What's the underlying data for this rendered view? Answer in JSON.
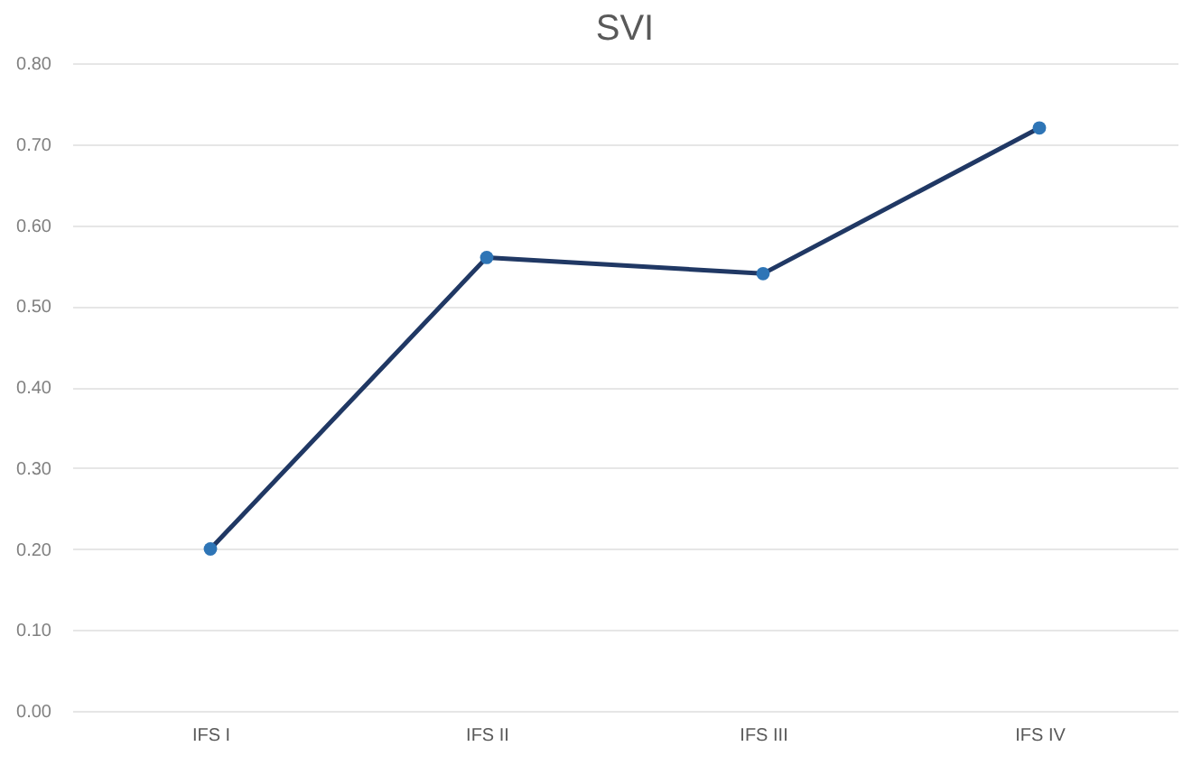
{
  "chart_data": {
    "type": "line",
    "title": "SVI",
    "categories": [
      "IFS I",
      "IFS II",
      "IFS III",
      "IFS IV"
    ],
    "series": [
      {
        "color": "#203864",
        "values": [
          0.2,
          0.56,
          0.54,
          0.72
        ]
      }
    ],
    "ylim": [
      0,
      0.8
    ],
    "yticks": [
      {
        "value": 0,
        "label": "0.00"
      },
      {
        "value": 0.1,
        "label": "0.10"
      },
      {
        "value": 0.2,
        "label": "0.20"
      },
      {
        "value": 0.3,
        "label": "0.30"
      },
      {
        "value": 0.4,
        "label": "0.40"
      },
      {
        "value": 0.5,
        "label": "0.50"
      },
      {
        "value": 0.6,
        "label": "0.60"
      },
      {
        "value": 0.7,
        "label": "0.70"
      },
      {
        "value": 0.8,
        "label": "0.80"
      }
    ],
    "grid": "y",
    "marker": "circle",
    "line_style": "solid"
  }
}
